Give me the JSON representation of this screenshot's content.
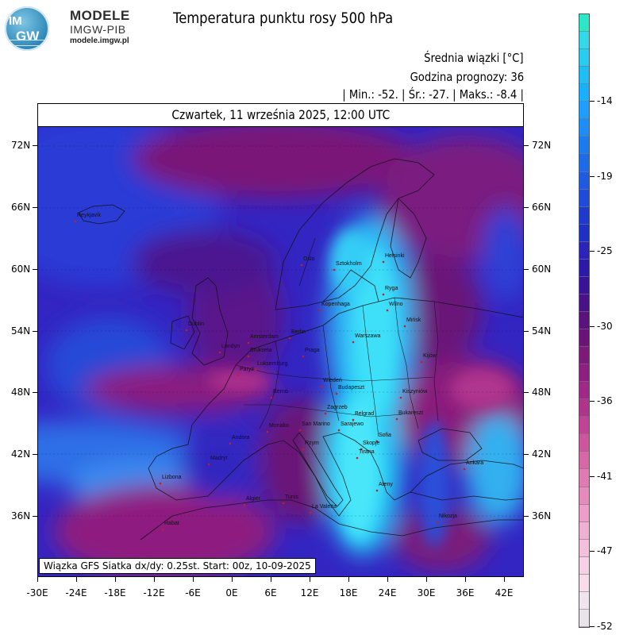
{
  "logo": {
    "badge_top": "IM",
    "badge_bottom": "GW",
    "line1": "MODELE",
    "line2": "IMGW-PIB",
    "line3": "modele.imgw.pl"
  },
  "title": "Temperatura punktu rosy 500 hPa",
  "info": {
    "line1": "Średnia wiązki [°C]",
    "line2": "Godzina prognozy: 36",
    "line3": "| Min.:     -52. | Śr.:     -27. | Maks.:    -8.4 |"
  },
  "date_header": "Czwartek, 11 września 2025, 12:00 UTC",
  "footer": "Wiązka GFS Siatka dx/dy: 0.25st. Start: 00z, 10-09-2025",
  "lat_labels": [
    "72N",
    "66N",
    "60N",
    "54N",
    "48N",
    "42N",
    "36N"
  ],
  "lon_labels": [
    "-30E",
    "-24E",
    "-18E",
    "-12E",
    "-6E",
    "0E",
    "6E",
    "12E",
    "18E",
    "24E",
    "30E",
    "36E",
    "42E"
  ],
  "colorbar": {
    "labels": [
      "-14",
      "-19",
      "-25",
      "-30",
      "-36",
      "-41",
      "-47",
      "-52"
    ],
    "colors_top_to_bottom": [
      "#2ee6c8",
      "#33d9e8",
      "#27cdf0",
      "#1fbff5",
      "#1aafff",
      "#1f9eff",
      "#1e8df5",
      "#1b7cf0",
      "#1d6be8",
      "#1f5be0",
      "#1f4bd8",
      "#1f3bce",
      "#2030c4",
      "#2a24b8",
      "#2e1aa8",
      "#3a1498",
      "#4a1288",
      "#5a127c",
      "#6a1478",
      "#7c1a7a",
      "#8e1f80",
      "#a02887",
      "#b0348e",
      "#c04496",
      "#cc569e",
      "#d668a8",
      "#df7ab2",
      "#e68cbd",
      "#ec9ec7",
      "#f0b0d2",
      "#f3c0db",
      "#f6d0e4",
      "#f8dcea",
      "#f0e4ee",
      "#e8e4ea"
    ]
  },
  "map_labels": [
    {
      "text": "Oslo"
    },
    {
      "text": "Sztokholm"
    },
    {
      "text": "Helsinki"
    },
    {
      "text": "Kopenhaga"
    },
    {
      "text": "Ryga"
    },
    {
      "text": "Wilno"
    },
    {
      "text": "Mińsk"
    },
    {
      "text": "Dublin"
    },
    {
      "text": "Amsterdam"
    },
    {
      "text": "Londyn"
    },
    {
      "text": "Bruksela"
    },
    {
      "text": "Luksemburg"
    },
    {
      "text": "Paryż"
    },
    {
      "text": "Berlin"
    },
    {
      "text": "Praga"
    },
    {
      "text": "Warszawa"
    },
    {
      "text": "Kijów"
    },
    {
      "text": "Wiedeń"
    },
    {
      "text": "Budapeszt"
    },
    {
      "text": "Kiszyniów"
    },
    {
      "text": "Berno"
    },
    {
      "text": "Zagrzeb"
    },
    {
      "text": "Belgrad"
    },
    {
      "text": "Bukareszt"
    },
    {
      "text": "Monako"
    },
    {
      "text": "San Marino"
    },
    {
      "text": "Sarajewo"
    },
    {
      "text": "Sofia"
    },
    {
      "text": "Andora"
    },
    {
      "text": "Rzym"
    },
    {
      "text": "Skopje"
    },
    {
      "text": "Tirana"
    },
    {
      "text": "Madryt"
    },
    {
      "text": "Ankara"
    },
    {
      "text": "Lizbona"
    },
    {
      "text": "Ateny"
    },
    {
      "text": "Algier"
    },
    {
      "text": "Tunis"
    },
    {
      "text": "La Valetta"
    },
    {
      "text": "Rabat"
    },
    {
      "text": "Nikozja"
    },
    {
      "text": "Reykjavik"
    }
  ]
}
